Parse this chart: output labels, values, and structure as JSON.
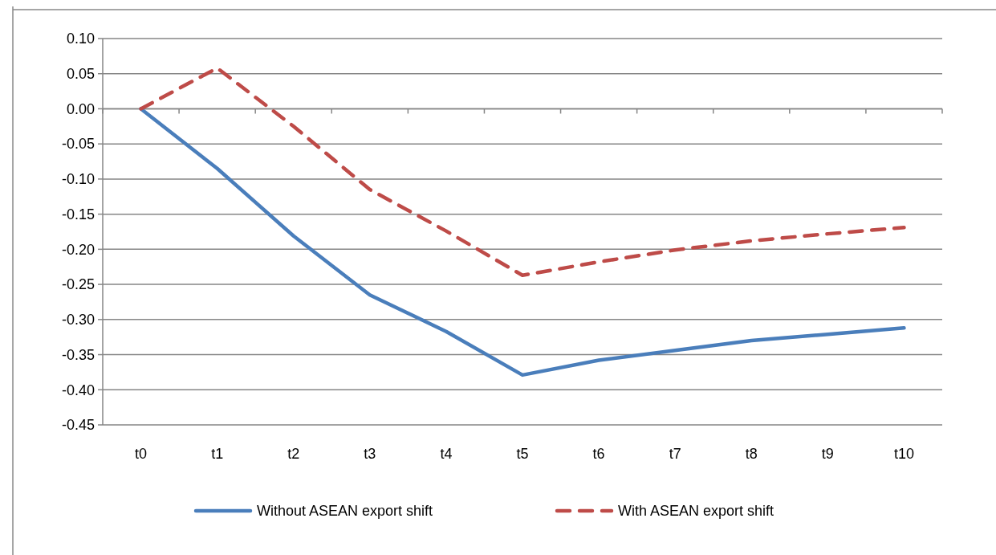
{
  "chart_data": {
    "type": "line",
    "categories": [
      "t0",
      "t1",
      "t2",
      "t3",
      "t4",
      "t5",
      "t6",
      "t7",
      "t8",
      "t9",
      "t10"
    ],
    "series": [
      {
        "name": "Without ASEAN export shift",
        "color": "#4a7ebb",
        "line_style": "solid",
        "values": [
          0,
          -0.085,
          -0.181,
          -0.265,
          -0.317,
          -0.379,
          -0.358,
          -0.344,
          -0.33,
          -0.321,
          -0.312
        ]
      },
      {
        "name": "With ASEAN export shift",
        "color": "#be4b48",
        "line_style": "dashed",
        "values": [
          0,
          0.058,
          -0.025,
          -0.115,
          -0.174,
          -0.237,
          -0.218,
          -0.201,
          -0.188,
          -0.178,
          -0.169
        ]
      }
    ],
    "ylim": [
      -0.45,
      0.1
    ],
    "yticks": [
      {
        "value": 0.1,
        "label": "0.10"
      },
      {
        "value": 0.05,
        "label": "0.05"
      },
      {
        "value": 0,
        "label": "0.00"
      },
      {
        "value": -0.05,
        "label": "-0.05"
      },
      {
        "value": -0.1,
        "label": "-0.10"
      },
      {
        "value": -0.15,
        "label": "-0.15"
      },
      {
        "value": -0.2,
        "label": "-0.20"
      },
      {
        "value": -0.25,
        "label": "-0.25"
      },
      {
        "value": -0.3,
        "label": "-0.30"
      },
      {
        "value": -0.35,
        "label": "-0.35"
      },
      {
        "value": -0.4,
        "label": "-0.40"
      },
      {
        "value": -0.45,
        "label": "-0.45"
      }
    ],
    "grid": "y",
    "legend": "bottom",
    "marker": "none"
  }
}
